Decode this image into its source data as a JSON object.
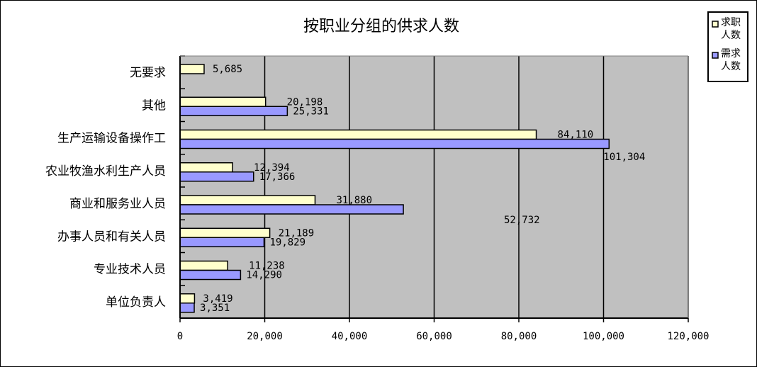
{
  "chart_data": {
    "type": "bar",
    "orientation": "horizontal",
    "title": "按职业分组的供求人数",
    "categories": [
      "单位负责人",
      "专业技术人员",
      "办事人员和有关人员",
      "商业和服务业人员",
      "农业牧渔水利生产人员",
      "生产运输设备操作工",
      "其他",
      "无要求"
    ],
    "series": [
      {
        "name": "求职人数",
        "color": "#FFFFCC",
        "values": [
          3419,
          11238,
          21189,
          31880,
          12394,
          84110,
          20198,
          5685
        ]
      },
      {
        "name": "需求人数",
        "color": "#9999FF",
        "values": [
          3351,
          14290,
          19829,
          52732,
          17366,
          101304,
          25331,
          null
        ]
      }
    ],
    "value_labels": [
      [
        "3,419",
        "11,238",
        "21,189",
        "31,880",
        "12,394",
        "84,110",
        "20,198",
        "5,685"
      ],
      [
        "3,351",
        "14,290",
        "19,829",
        "52,732",
        "17,366",
        "101,304",
        "25,331",
        ""
      ]
    ],
    "xlim": [
      0,
      120000
    ],
    "xticks": [
      "0",
      "20,000",
      "40,000",
      "60,000",
      "80,000",
      "100,000",
      "120,000"
    ],
    "xticks_values": [
      0,
      20000,
      40000,
      60000,
      80000,
      100000,
      120000
    ],
    "grid": true,
    "plot_background": "#C0C0C0",
    "legend": {
      "position": "right",
      "items": [
        "求职人数",
        "需求人数"
      ]
    }
  }
}
